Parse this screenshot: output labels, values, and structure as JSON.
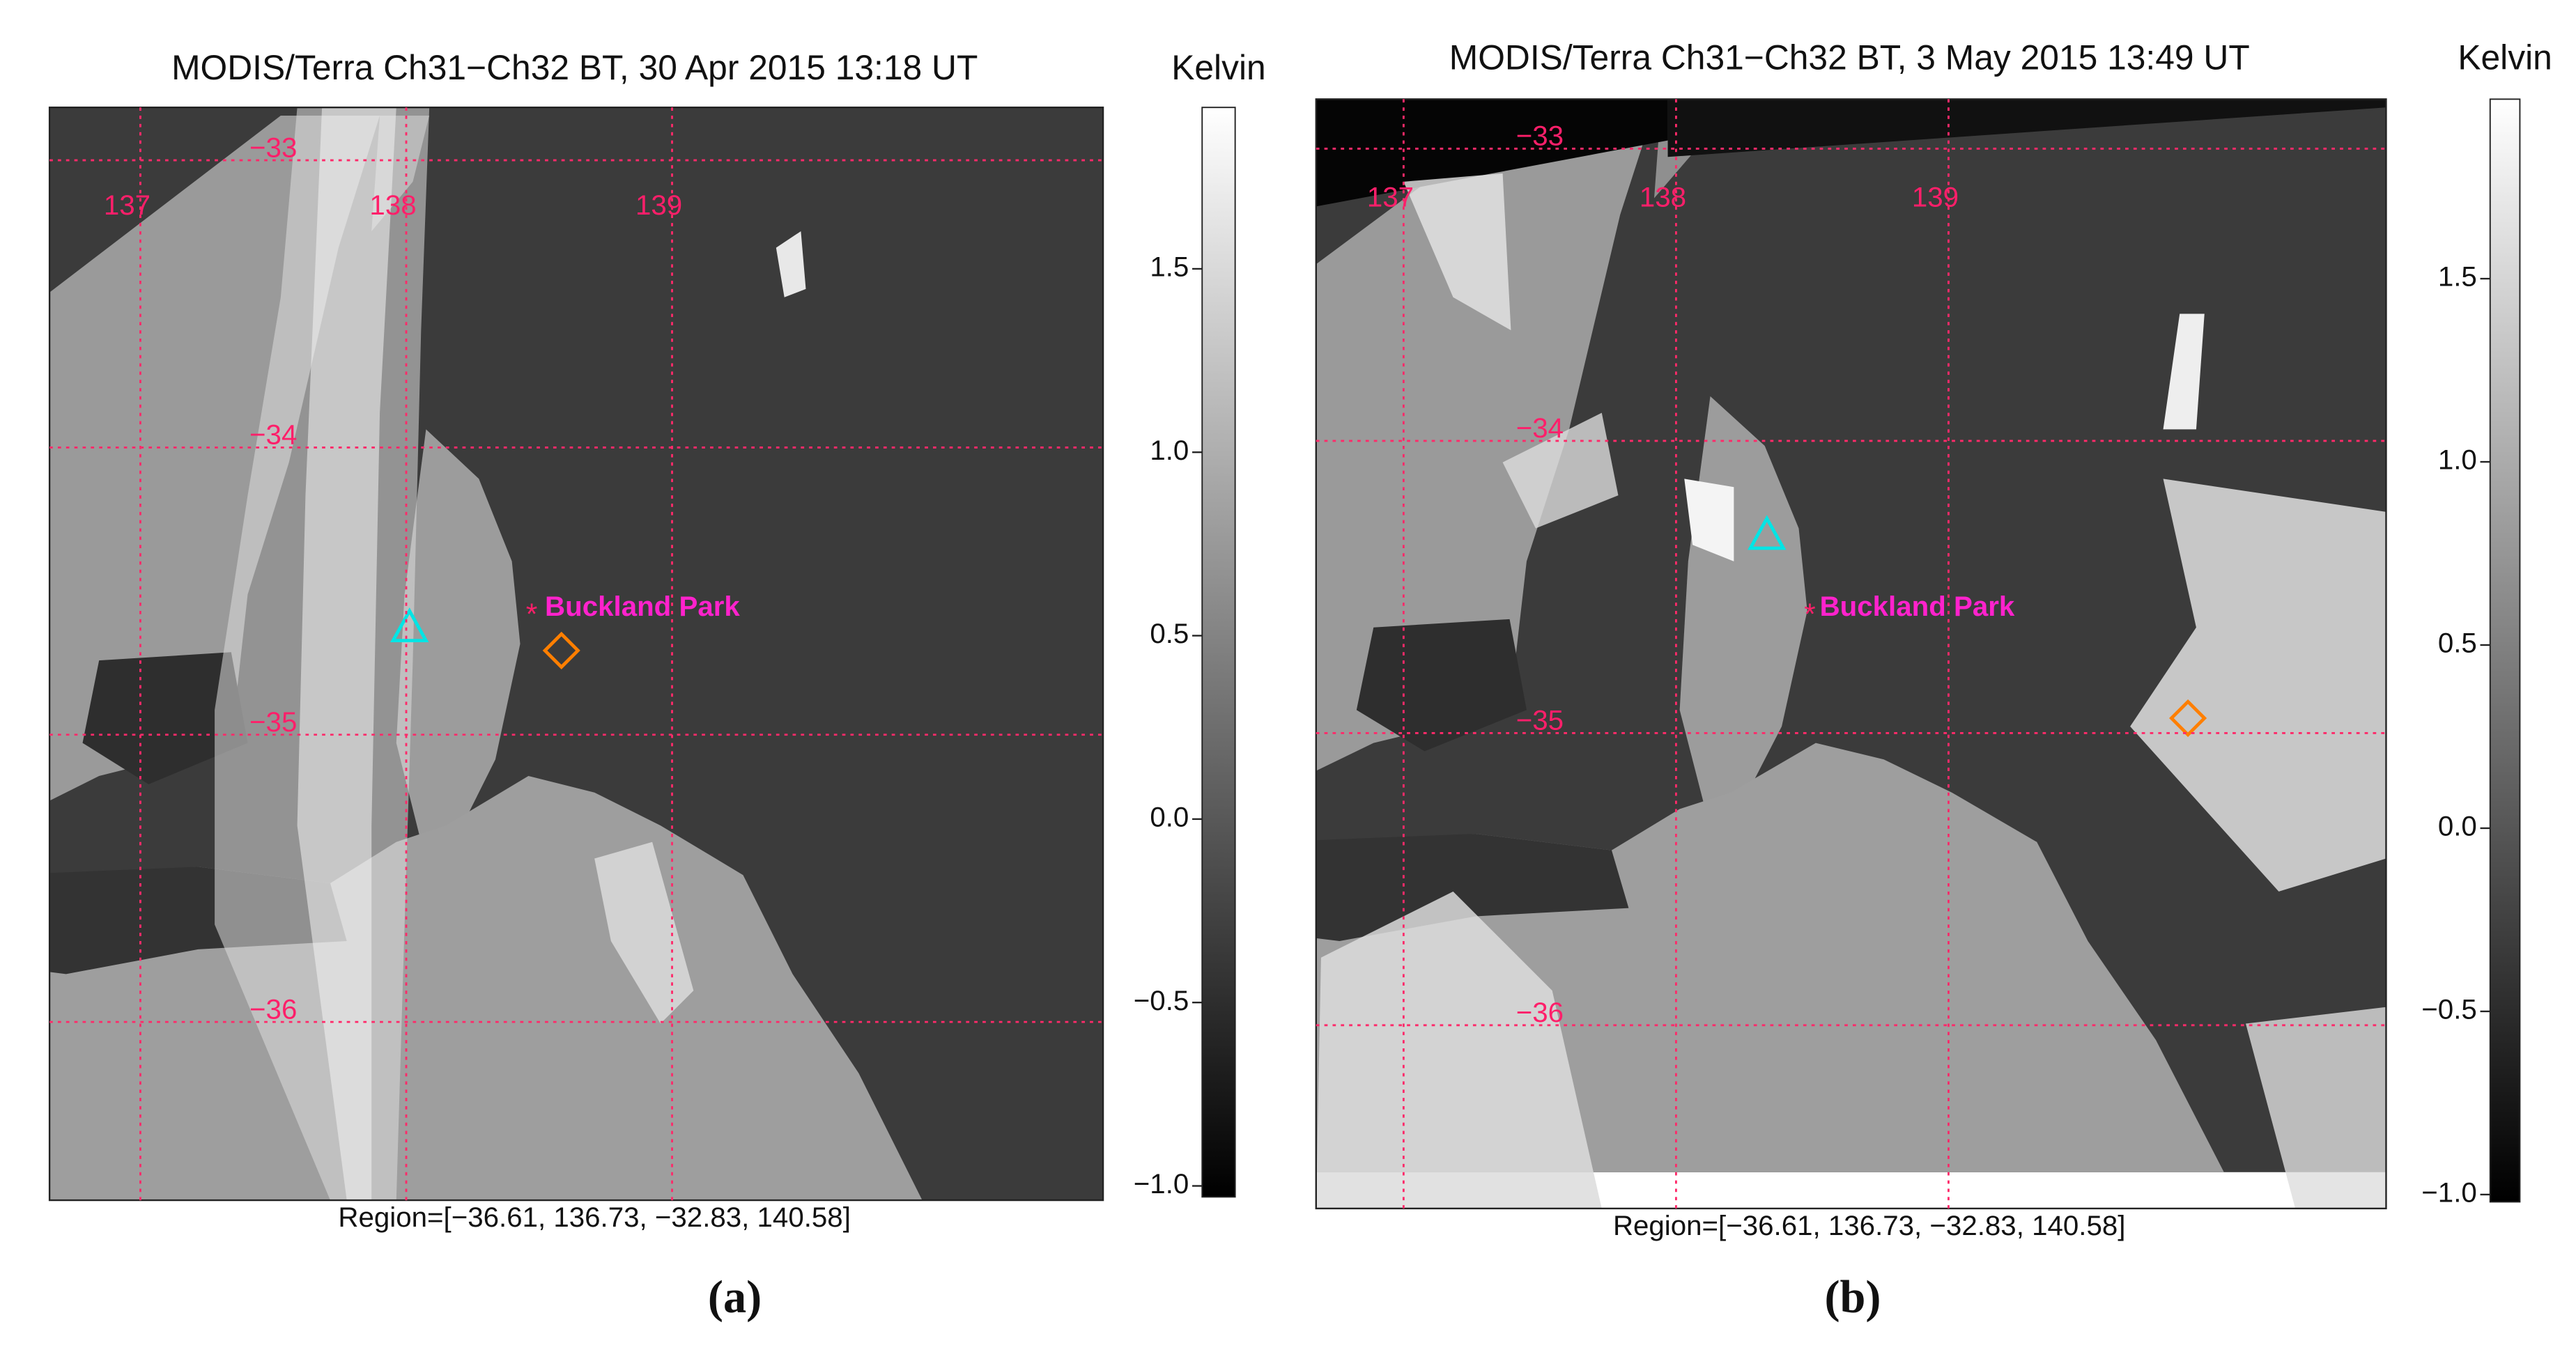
{
  "panels": [
    {
      "title": "MODIS/Terra Ch31−Ch32 BT, 30 Apr 2015 13:18 UT",
      "colorbar_label": "Kelvin",
      "colorbar_lim": [
        -1.03,
        1.94
      ],
      "colorbar_ticks": [
        {
          "value": 1.5,
          "label": "1.5"
        },
        {
          "value": 1,
          "label": "1.0"
        },
        {
          "value": 0.5,
          "label": "0.5"
        },
        {
          "value": 0,
          "label": "0.0"
        },
        {
          "value": -0.5,
          "label": "−0.5"
        },
        {
          "value": -1,
          "label": "−1.0"
        }
      ],
      "lat_labels": [
        {
          "value": -33,
          "label": "−33"
        },
        {
          "value": -34,
          "label": "−34"
        },
        {
          "value": -35,
          "label": "−35"
        },
        {
          "value": -36,
          "label": "−36"
        }
      ],
      "lon_labels": [
        137,
        138,
        139
      ],
      "site": "Buckland Park",
      "region": "Region=[−36.61, 136.73, −32.83, 140.58]",
      "panel_label": "(a)"
    },
    {
      "title": "MODIS/Terra Ch31−Ch32 BT,  3 May 2015 13:49 UT",
      "colorbar_label": "Kelvin",
      "colorbar_lim": [
        -1.02,
        1.99
      ],
      "colorbar_ticks": [
        {
          "value": 1.5,
          "label": "1.5"
        },
        {
          "value": 1,
          "label": "1.0"
        },
        {
          "value": 0.5,
          "label": "0.5"
        },
        {
          "value": 0,
          "label": "0.0"
        },
        {
          "value": -0.5,
          "label": "−0.5"
        },
        {
          "value": -1,
          "label": "−1.0"
        }
      ],
      "lat_labels": [
        {
          "value": -33,
          "label": "−33"
        },
        {
          "value": -34,
          "label": "−34"
        },
        {
          "value": -35,
          "label": "−35"
        },
        {
          "value": -36,
          "label": "−36"
        }
      ],
      "lon_labels": [
        137,
        138,
        139
      ],
      "site": "Buckland Park",
      "region": "Region=[−36.61, 136.73, −32.83, 140.58]",
      "panel_label": "(b)"
    }
  ]
}
